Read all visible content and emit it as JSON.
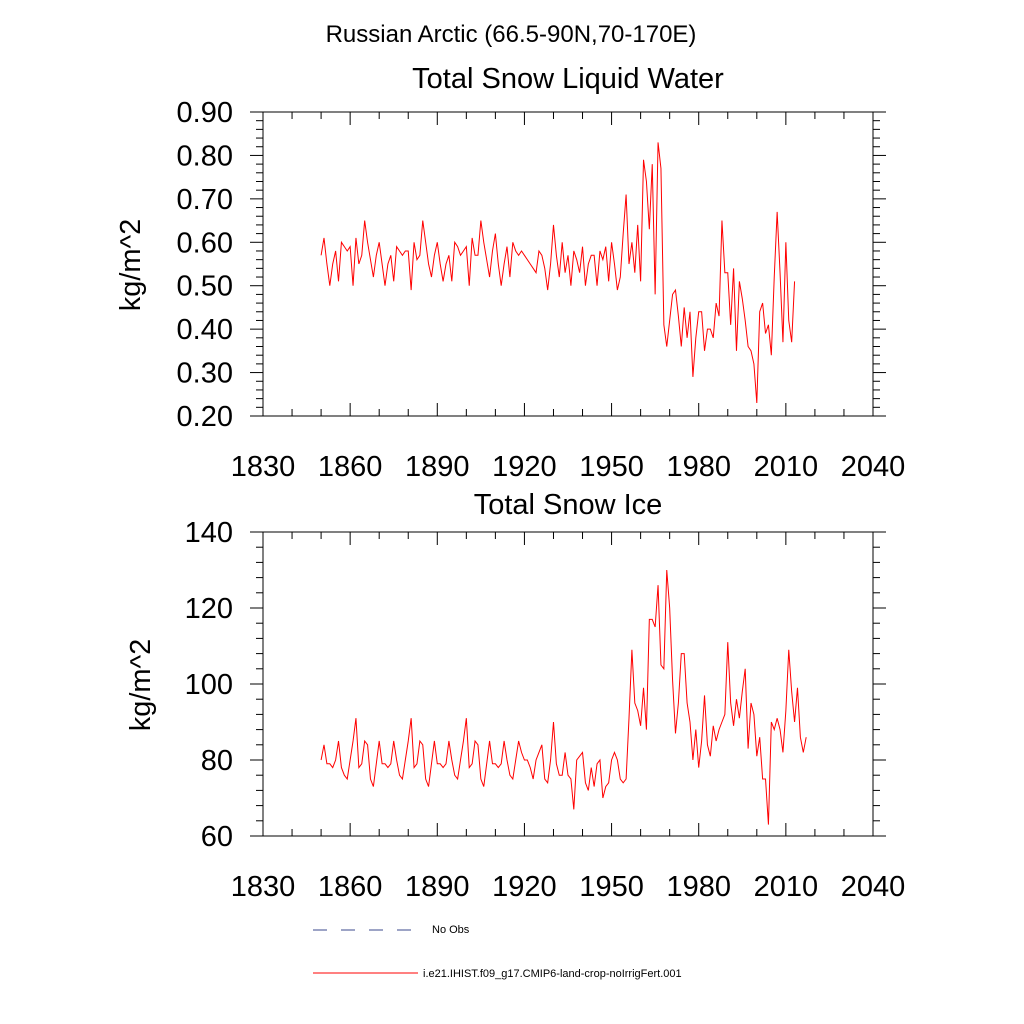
{
  "page": {
    "suptitle": "Russian Arctic (66.5-90N,70-170E)"
  },
  "legend": {
    "items": [
      {
        "label": "No Obs",
        "color": "#3b4a8c",
        "dash": "dashed"
      },
      {
        "label": "i.e21.IHIST.f09_g17.CMIP6-land-crop-noIrrigFert.001",
        "color": "#ff0000",
        "dash": "solid"
      }
    ]
  },
  "chart_data": [
    {
      "type": "line",
      "title": "Total Snow Liquid Water",
      "ylabel": "kg/m^2",
      "xlabel": "",
      "xlim": [
        1830,
        2040
      ],
      "ylim": [
        0.2,
        0.9
      ],
      "xticks": [
        1830,
        1860,
        1890,
        1920,
        1950,
        1980,
        2010,
        2040
      ],
      "xtick_labels": [
        "1830",
        "1860",
        "1890",
        "1920",
        "1950",
        "1980",
        "2010",
        "2040"
      ],
      "yticks": [
        0.2,
        0.3,
        0.4,
        0.5,
        0.6,
        0.7,
        0.8,
        0.9
      ],
      "ytick_labels": [
        "0.20",
        "0.30",
        "0.40",
        "0.50",
        "0.60",
        "0.70",
        "0.80",
        "0.90"
      ],
      "x_start": 1850,
      "series": [
        {
          "color": "#ff0000",
          "values": [
            0.57,
            0.61,
            0.55,
            0.5,
            0.55,
            0.58,
            0.51,
            0.6,
            0.59,
            0.58,
            0.59,
            0.5,
            0.61,
            0.55,
            0.57,
            0.65,
            0.6,
            0.56,
            0.52,
            0.57,
            0.6,
            0.55,
            0.5,
            0.55,
            0.57,
            0.51,
            0.59,
            0.58,
            0.57,
            0.58,
            0.58,
            0.49,
            0.6,
            0.56,
            0.57,
            0.65,
            0.6,
            0.55,
            0.52,
            0.57,
            0.6,
            0.55,
            0.51,
            0.55,
            0.57,
            0.51,
            0.6,
            0.59,
            0.57,
            0.58,
            0.59,
            0.5,
            0.61,
            0.57,
            0.57,
            0.65,
            0.6,
            0.56,
            0.52,
            0.58,
            0.62,
            0.55,
            0.5,
            0.55,
            0.59,
            0.52,
            0.6,
            0.58,
            0.57,
            0.58,
            0.57,
            0.56,
            0.55,
            0.54,
            0.53,
            0.58,
            0.57,
            0.54,
            0.49,
            0.55,
            0.64,
            0.57,
            0.52,
            0.6,
            0.53,
            0.57,
            0.5,
            0.58,
            0.56,
            0.53,
            0.59,
            0.5,
            0.55,
            0.57,
            0.57,
            0.5,
            0.58,
            0.56,
            0.59,
            0.51,
            0.6,
            0.55,
            0.49,
            0.52,
            0.62,
            0.71,
            0.55,
            0.6,
            0.53,
            0.64,
            0.51,
            0.79,
            0.74,
            0.63,
            0.78,
            0.48,
            0.83,
            0.77,
            0.41,
            0.36,
            0.42,
            0.48,
            0.49,
            0.43,
            0.36,
            0.45,
            0.38,
            0.44,
            0.29,
            0.38,
            0.44,
            0.44,
            0.35,
            0.4,
            0.4,
            0.38,
            0.46,
            0.43,
            0.65,
            0.53,
            0.53,
            0.41,
            0.54,
            0.35,
            0.51,
            0.47,
            0.42,
            0.36,
            0.35,
            0.32,
            0.23,
            0.44,
            0.46,
            0.39,
            0.41,
            0.34,
            0.52,
            0.67,
            0.53,
            0.37,
            0.6,
            0.42,
            0.37,
            0.51
          ]
        }
      ]
    },
    {
      "type": "line",
      "title": "Total Snow Ice",
      "ylabel": "kg/m^2",
      "xlabel": "",
      "xlim": [
        1830,
        2040
      ],
      "ylim": [
        60,
        140
      ],
      "xticks": [
        1830,
        1860,
        1890,
        1920,
        1950,
        1980,
        2010,
        2040
      ],
      "xtick_labels": [
        "1830",
        "1860",
        "1890",
        "1920",
        "1950",
        "1980",
        "2010",
        "2040"
      ],
      "yticks": [
        60,
        80,
        100,
        120,
        140
      ],
      "ytick_labels": [
        "60",
        "80",
        "100",
        "120",
        "140"
      ],
      "x_start": 1850,
      "series": [
        {
          "color": "#ff0000",
          "values": [
            80,
            84,
            79,
            79,
            78,
            80,
            85,
            78,
            76,
            75,
            80,
            85,
            91,
            78,
            79,
            85,
            84,
            75,
            73,
            79,
            85,
            79,
            79,
            78,
            79,
            85,
            80,
            76,
            75,
            80,
            85,
            91,
            78,
            79,
            85,
            84,
            75,
            73,
            79,
            85,
            79,
            79,
            78,
            79,
            85,
            80,
            76,
            75,
            80,
            85,
            91,
            78,
            79,
            85,
            84,
            75,
            73,
            79,
            85,
            79,
            79,
            78,
            79,
            85,
            80,
            76,
            75,
            80,
            85,
            82,
            80,
            80,
            78,
            75,
            80,
            82,
            84,
            75,
            74,
            80,
            90,
            79,
            76,
            76,
            82,
            76,
            75,
            67,
            80,
            81,
            82,
            74,
            72,
            78,
            73,
            79,
            80,
            70,
            73,
            74,
            80,
            82,
            80,
            75,
            74,
            75,
            91,
            109,
            95,
            93,
            89,
            99,
            88,
            117,
            117,
            115,
            126,
            105,
            104,
            130,
            120,
            101,
            87,
            95,
            108,
            108,
            95,
            90,
            80,
            88,
            78,
            85,
            97,
            84,
            81,
            89,
            85,
            88,
            90,
            92,
            111,
            95,
            89,
            96,
            91,
            98,
            104,
            83,
            95,
            92,
            81,
            86,
            75,
            75,
            63,
            90,
            88,
            91,
            88,
            82,
            93,
            109,
            98,
            90,
            99,
            86,
            82,
            86
          ]
        }
      ]
    }
  ]
}
